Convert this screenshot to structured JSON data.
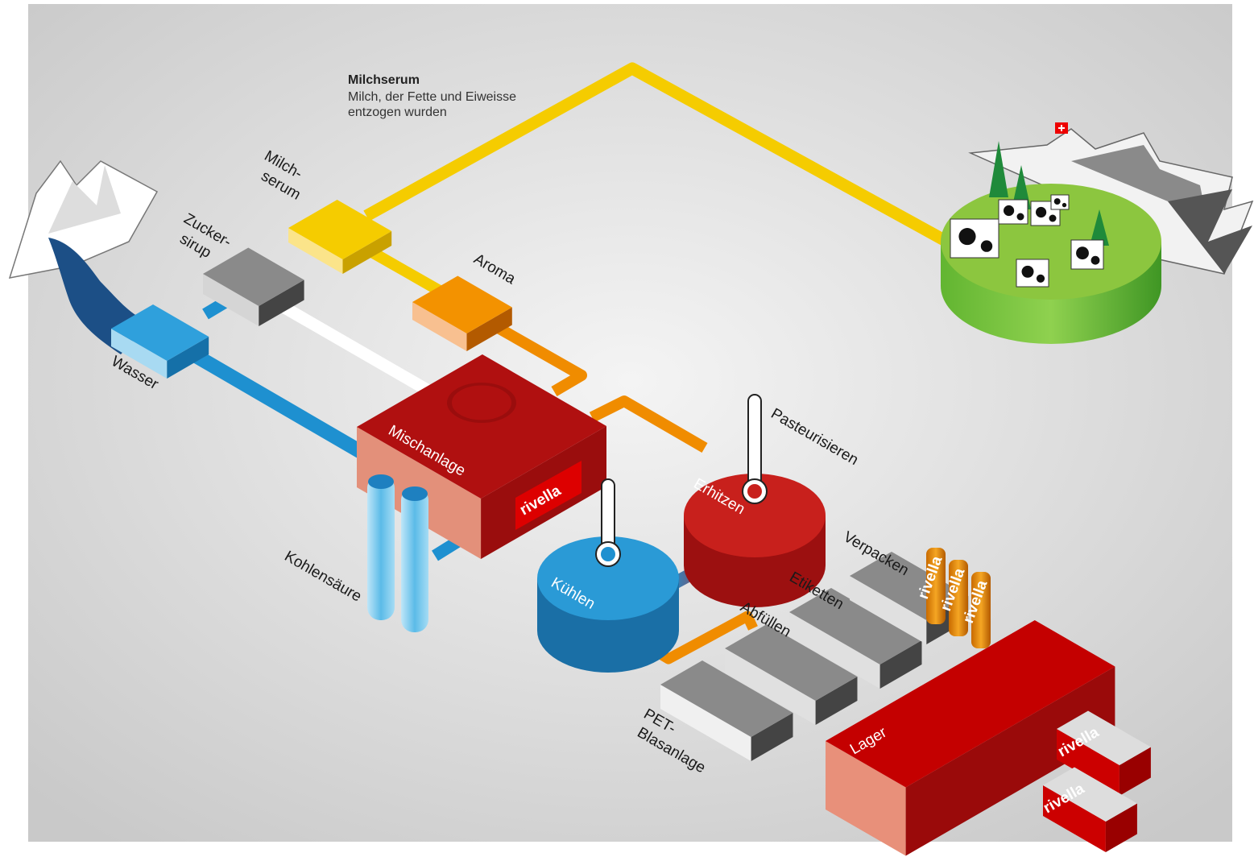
{
  "annotation": {
    "title": "Milchserum",
    "lines": [
      "Milch, der Fette und Eiweisse",
      "entzogen wurden"
    ]
  },
  "brand": "rivella",
  "nodes": [
    {
      "lines": [
        "Milch-",
        "serum"
      ]
    },
    {
      "lines": [
        "Zucker-",
        "sirup"
      ]
    },
    {
      "lines": [
        "Aroma"
      ]
    },
    {
      "lines": [
        "Wasser"
      ]
    },
    {
      "lines": [
        "Mischanlage"
      ]
    },
    {
      "lines": [
        "Kohlensäure"
      ]
    },
    {
      "lines": [
        "Kühlen"
      ]
    },
    {
      "lines": [
        "Erhitzen"
      ]
    },
    {
      "lines": [
        "Pasteurisieren"
      ]
    },
    {
      "lines": [
        "Verpacken"
      ]
    },
    {
      "lines": [
        "Etiketten"
      ]
    },
    {
      "lines": [
        "Abfüllen"
      ]
    },
    {
      "lines": [
        "PET-",
        "Blasanlage"
      ]
    },
    {
      "lines": [
        "Lager"
      ]
    }
  ]
}
